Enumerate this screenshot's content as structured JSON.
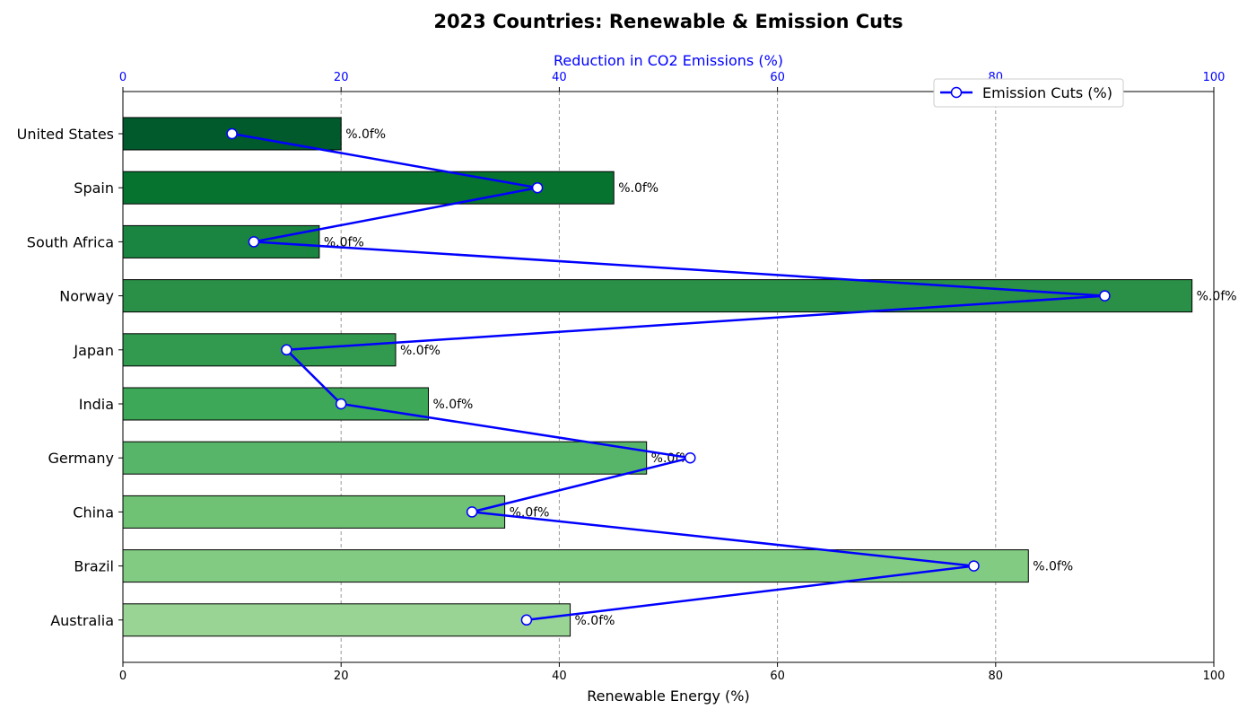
{
  "chart_data": {
    "type": "bar",
    "orientation": "horizontal",
    "title": "2023 Countries: Renewable & Emission Cuts",
    "xlabel": "Renewable Energy (%)",
    "x2label": "Reduction in CO2 Emissions (%)",
    "xlim": [
      0,
      100
    ],
    "x2lim": [
      0,
      100
    ],
    "xticks": [
      0,
      20,
      40,
      60,
      80,
      100
    ],
    "x2ticks": [
      0,
      20,
      40,
      60,
      80,
      100
    ],
    "grid": "vertical dashed",
    "legend_position": "top-right",
    "categories": [
      "United States",
      "Spain",
      "South Africa",
      "Norway",
      "Japan",
      "India",
      "Germany",
      "China",
      "Brazil",
      "Australia"
    ],
    "series": [
      {
        "type": "bar",
        "values": [
          20,
          45,
          18,
          98,
          25,
          28,
          48,
          35,
          83,
          41
        ],
        "data_labels": [
          "%.0f%",
          "%.0f%",
          "%.0f%",
          "%.0f%",
          "%.0f%",
          "%.0f%",
          "%.0f%",
          "%.0f%",
          "%.0f%",
          "%.0f%"
        ],
        "colors": [
          "#005a2b",
          "#06732f",
          "#1a8540",
          "#2a8f47",
          "#319a4f",
          "#3da858",
          "#57b569",
          "#6fc174",
          "#82cb82",
          "#99d495"
        ]
      },
      {
        "type": "line",
        "name": "Emission Cuts (%)",
        "axis": "top",
        "values": [
          10,
          38,
          12,
          90,
          15,
          20,
          52,
          32,
          78,
          37
        ],
        "color": "#0000ff"
      }
    ]
  }
}
